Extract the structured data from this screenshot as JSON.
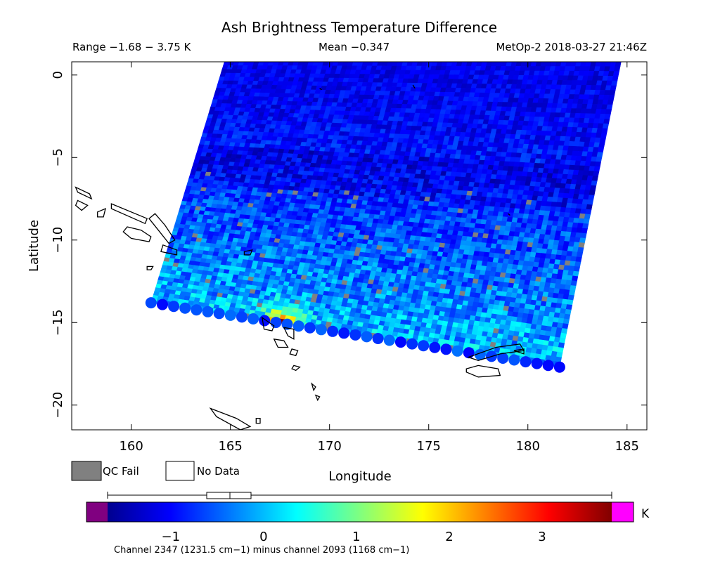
{
  "chart_data": {
    "type": "heatmap",
    "title": "Ash Brightness Temperature Difference",
    "subtitle_range": "Range −1.68 − 3.75 K",
    "subtitle_mean": "Mean −0.347",
    "subtitle_source": "MetOp-2 2018-03-27 21:46Z",
    "xlabel": "Longitude",
    "ylabel": "Latitude",
    "xlim": [
      157,
      186
    ],
    "ylim": [
      -21.5,
      0.8
    ],
    "x_ticks": [
      160,
      165,
      170,
      175,
      180,
      185
    ],
    "x_tick_labels": [
      "160",
      "165",
      "170",
      "175",
      "180",
      "185"
    ],
    "y_ticks": [
      0,
      -5,
      -10,
      -15,
      -20
    ],
    "y_tick_labels": [
      "0",
      "−5",
      "−10",
      "−15",
      "−20"
    ],
    "swath": {
      "corners_lonlat": [
        [
          161.0,
          -13.8
        ],
        [
          164.7,
          0.8
        ],
        [
          184.7,
          0.8
        ],
        [
          181.6,
          -17.7
        ]
      ],
      "value_range": [
        -1.68,
        3.75
      ],
      "mean": -0.347,
      "hotspot": {
        "lon": 167.6,
        "lat": -15.3,
        "max_value": 3.75
      }
    },
    "legend": {
      "qc_fail_label": "QC Fail",
      "no_data_label": "No Data",
      "qc_fail_color": "#808080",
      "no_data_color": "#ffffff"
    },
    "colorbar": {
      "ticks": [
        -1,
        0,
        1,
        2,
        3
      ],
      "tick_labels": [
        "−1",
        "0",
        "1",
        "2",
        "3"
      ],
      "unit": "K",
      "range": [
        -1.68,
        3.75
      ],
      "under_color": "#800080",
      "over_color": "#ff00ff",
      "caption": "Channel 2347 (1231.5 cm−1) minus channel 2093 (1168 cm−1)"
    }
  }
}
